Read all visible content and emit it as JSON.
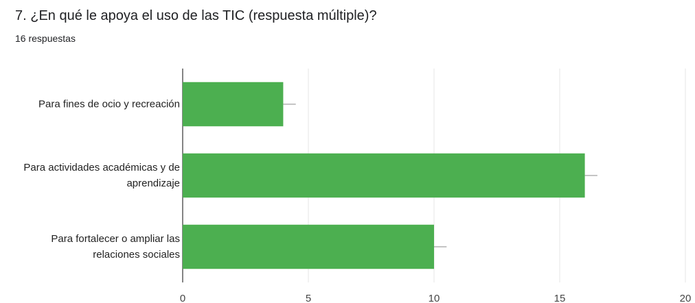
{
  "chart_data": {
    "type": "bar",
    "orientation": "horizontal",
    "title": "7. ¿En qué le apoya el uso de las TIC (respuesta múltiple)?",
    "subtitle": "16 respuestas",
    "categories": [
      "Para fines de ocio y recreación",
      "Para actividades académicas y de aprendizaje",
      "Para fortalecer o ampliar las relaciones sociales"
    ],
    "values": [
      4,
      16,
      10
    ],
    "errors": [
      0.5,
      0.5,
      0.5
    ],
    "color": "#4caf50",
    "xlim": [
      0,
      20
    ],
    "xticks": [
      0,
      5,
      10,
      15,
      20
    ],
    "grid": true
  }
}
